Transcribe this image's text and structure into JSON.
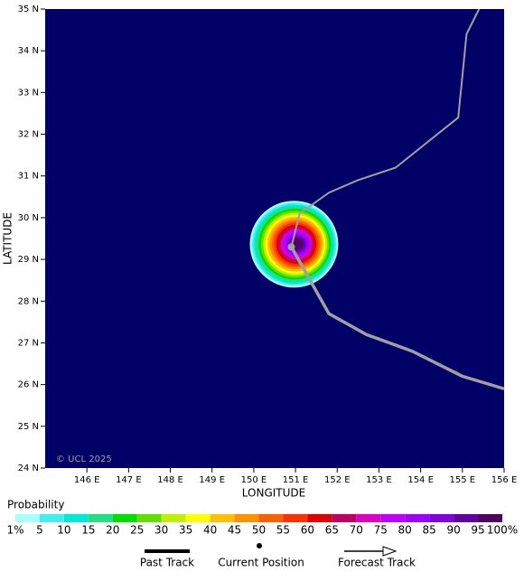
{
  "chart_data": {
    "type": "map",
    "xlabel": "LONGITUDE",
    "ylabel": "LATITUDE",
    "annotation": "© UCL 2025",
    "background": "#000066",
    "xlim": [
      145,
      156
    ],
    "ylim": [
      24,
      35
    ],
    "xticks": [
      {
        "value": 146,
        "label": "146 E"
      },
      {
        "value": 147,
        "label": "147 E"
      },
      {
        "value": 148,
        "label": "148 E"
      },
      {
        "value": 149,
        "label": "149 E"
      },
      {
        "value": 150,
        "label": "150 E"
      },
      {
        "value": 151,
        "label": "151 E"
      },
      {
        "value": 152,
        "label": "152 E"
      },
      {
        "value": 153,
        "label": "153 E"
      },
      {
        "value": 154,
        "label": "154 E"
      },
      {
        "value": 155,
        "label": "155 E"
      },
      {
        "value": 156,
        "label": "156 E"
      }
    ],
    "yticks": [
      {
        "value": 24,
        "label": "24 N"
      },
      {
        "value": 25,
        "label": "25 N"
      },
      {
        "value": 26,
        "label": "26 N"
      },
      {
        "value": 27,
        "label": "27 N"
      },
      {
        "value": 28,
        "label": "28 N"
      },
      {
        "value": 29,
        "label": "29 N"
      },
      {
        "value": 30,
        "label": "30 N"
      },
      {
        "value": 31,
        "label": "31 N"
      },
      {
        "value": 32,
        "label": "32 N"
      },
      {
        "value": 33,
        "label": "33 N"
      },
      {
        "value": 34,
        "label": "34 N"
      },
      {
        "value": 35,
        "label": "35 N"
      }
    ],
    "series": [
      {
        "name": "Past Track",
        "color": "#a0a0a0",
        "x": [
          156.0,
          155.0,
          153.8,
          152.7,
          151.8,
          150.9
        ],
        "values": [
          25.9,
          26.2,
          26.8,
          27.2,
          27.7,
          29.3
        ]
      },
      {
        "name": "Current Position",
        "color": "#a0a0a0",
        "x": [
          150.9
        ],
        "values": [
          29.3
        ]
      },
      {
        "name": "Forecast Track",
        "color": "#a0a0a0",
        "x": [
          150.9,
          151.1,
          151.8,
          152.5,
          153.4,
          154.9,
          155.1,
          155.4
        ],
        "values": [
          29.3,
          30.1,
          30.6,
          30.9,
          31.2,
          32.4,
          34.4,
          35.0
        ]
      }
    ],
    "colorbar": {
      "title": "Probability",
      "levels": [
        {
          "value": 1,
          "label": "1%"
        },
        5,
        10,
        15,
        20,
        25,
        30,
        35,
        40,
        45,
        50,
        55,
        60,
        65,
        70,
        75,
        80,
        85,
        90,
        95,
        {
          "value": 100,
          "label": "100%"
        }
      ],
      "colors": [
        "#a8ffff",
        "#40f0f0",
        "#00e8d8",
        "#20e080",
        "#00e000",
        "#60e000",
        "#c0f000",
        "#ffff00",
        "#ffc000",
        "#ff9000",
        "#ff6000",
        "#ff3000",
        "#e00000",
        "#c00060",
        "#e000c0",
        "#c000ff",
        "#a000ff",
        "#8000e0",
        "#6000a0",
        "#500060"
      ]
    }
  }
}
